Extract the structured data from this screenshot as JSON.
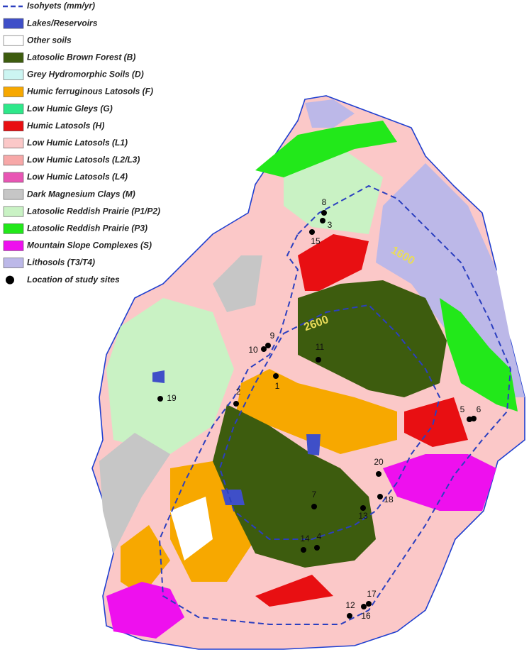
{
  "legend": {
    "items": [
      {
        "label": "Isohyets (mm/yr)",
        "color": "#2b3fbf"
      },
      {
        "label": "Lakes/Reservoirs",
        "color": "#3f4fc8"
      },
      {
        "label": "Other soils",
        "color": "#ffffff"
      },
      {
        "label": "Latosolic Brown Forest (B)",
        "color": "#3d5c0e"
      },
      {
        "label": "Grey Hydromorphic Soils (D)",
        "color": "#ccf5f2"
      },
      {
        "label": "Humic ferruginous Latosols (F)",
        "color": "#f7a800"
      },
      {
        "label": "Low Humic Gleys (G)",
        "color": "#2ee88a"
      },
      {
        "label": "Humic Latosols (H)",
        "color": "#e80f12"
      },
      {
        "label": "Low Humic Latosols (L1)",
        "color": "#fbc8c8"
      },
      {
        "label": "Low Humic Latosols (L2/L3)",
        "color": "#f7a8a8"
      },
      {
        "label": "Low Humic Latosols (L4)",
        "color": "#e855b4"
      },
      {
        "label": "Dark Magnesium Clays (M)",
        "color": "#c6c6c6"
      },
      {
        "label": "Latosolic Reddish Prairie (P1/P2)",
        "color": "#c9f2c4"
      },
      {
        "label": "Latosolic Reddish Prairie (P3)",
        "color": "#22e81a"
      },
      {
        "label": "Mountain Slope Complexes (S)",
        "color": "#ee10ee"
      },
      {
        "label": "Lithosols (T3/T4)",
        "color": "#bcb8e8"
      },
      {
        "label": "Location of study sites",
        "color": "#000000"
      }
    ]
  },
  "isohyets": [
    "1600",
    "2600"
  ],
  "sites": [
    "1",
    "2",
    "3",
    "4",
    "5",
    "6",
    "7",
    "8",
    "9",
    "10",
    "11",
    "12",
    "13",
    "14",
    "15",
    "16",
    "17",
    "18",
    "19",
    "20"
  ]
}
